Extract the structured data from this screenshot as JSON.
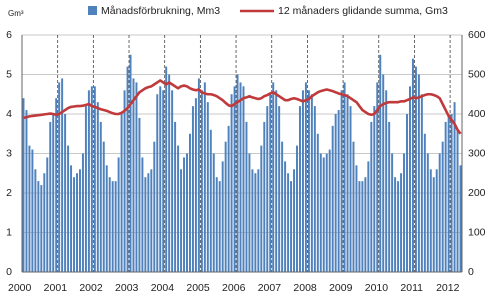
{
  "chart_data": {
    "type": "bar-line",
    "y_label": "Gm³",
    "ylim": [
      0,
      6
    ],
    "yticks": [
      0,
      1,
      2,
      3,
      4,
      5,
      6
    ],
    "y2lim": [
      0,
      600
    ],
    "y2ticks": [
      0,
      100,
      200,
      300,
      400,
      500,
      600
    ],
    "grid": true,
    "legend": "top",
    "categories": [
      "2000",
      null,
      null,
      null,
      null,
      null,
      null,
      null,
      null,
      null,
      null,
      null,
      "2001",
      null,
      null,
      null,
      null,
      null,
      null,
      null,
      null,
      null,
      null,
      null,
      "2002",
      null,
      null,
      null,
      null,
      null,
      null,
      null,
      null,
      null,
      null,
      null,
      "2003",
      null,
      null,
      null,
      null,
      null,
      null,
      null,
      null,
      null,
      null,
      null,
      "2004",
      null,
      null,
      null,
      null,
      null,
      null,
      null,
      null,
      null,
      null,
      null,
      "2005",
      null,
      null,
      null,
      null,
      null,
      null,
      null,
      null,
      null,
      null,
      null,
      "2006",
      null,
      null,
      null,
      null,
      null,
      null,
      null,
      null,
      null,
      null,
      null,
      "2007",
      null,
      null,
      null,
      null,
      null,
      null,
      null,
      null,
      null,
      null,
      null,
      "2008",
      null,
      null,
      null,
      null,
      null,
      null,
      null,
      null,
      null,
      null,
      null,
      "2009",
      null,
      null,
      null,
      null,
      null,
      null,
      null,
      null,
      null,
      null,
      null,
      "2010",
      null,
      null,
      null,
      null,
      null,
      null,
      null,
      null,
      null,
      null,
      null,
      "2011",
      null,
      null,
      null,
      null,
      null,
      null,
      null,
      null,
      null,
      null,
      null,
      "2012",
      null,
      null,
      null
    ],
    "series": [
      {
        "name": "Månadsförbrukning, Mm3",
        "type": "bar",
        "axis": "y2",
        "color": "#4f81bd",
        "values": [
          440,
          410,
          320,
          310,
          260,
          230,
          220,
          250,
          290,
          380,
          400,
          440,
          480,
          490,
          400,
          320,
          270,
          240,
          250,
          260,
          300,
          420,
          460,
          470,
          470,
          430,
          380,
          330,
          270,
          240,
          230,
          230,
          290,
          400,
          460,
          520,
          550,
          490,
          480,
          390,
          290,
          240,
          250,
          260,
          330,
          450,
          470,
          460,
          520,
          500,
          460,
          380,
          320,
          260,
          290,
          300,
          350,
          420,
          440,
          490,
          460,
          480,
          430,
          360,
          300,
          240,
          230,
          280,
          330,
          370,
          450,
          470,
          500,
          480,
          470,
          380,
          300,
          260,
          250,
          260,
          320,
          380,
          420,
          450,
          480,
          460,
          420,
          330,
          280,
          250,
          230,
          260,
          320,
          420,
          460,
          480,
          460,
          450,
          420,
          350,
          300,
          290,
          300,
          310,
          370,
          400,
          410,
          460,
          480,
          450,
          420,
          330,
          270,
          230,
          230,
          240,
          280,
          380,
          420,
          480,
          550,
          500,
          460,
          380,
          300,
          240,
          230,
          250,
          300,
          400,
          470,
          540,
          520,
          500,
          450,
          350,
          300,
          260,
          240,
          260,
          300,
          330,
          380,
          400,
          400,
          430,
          360,
          270
        ]
      },
      {
        "name": "12 månaders glidande summa, Gm3",
        "type": "line",
        "color": "#c0393b",
        "values": [
          3.9,
          3.92,
          3.94,
          3.95,
          3.96,
          3.97,
          3.98,
          3.99,
          4.0,
          4.01,
          4.0,
          3.98,
          4.0,
          4.05,
          4.1,
          4.15,
          4.18,
          4.19,
          4.2,
          4.2,
          4.21,
          4.23,
          4.25,
          4.2,
          4.18,
          4.15,
          4.12,
          4.1,
          4.08,
          4.05,
          4.02,
          4.0,
          4.0,
          4.03,
          4.08,
          4.15,
          4.25,
          4.35,
          4.45,
          4.55,
          4.6,
          4.65,
          4.68,
          4.7,
          4.75,
          4.8,
          4.85,
          4.8,
          4.75,
          4.8,
          4.75,
          4.7,
          4.65,
          4.7,
          4.72,
          4.7,
          4.65,
          4.62,
          4.6,
          4.62,
          4.55,
          4.52,
          4.5,
          4.5,
          4.48,
          4.45,
          4.4,
          4.35,
          4.28,
          4.22,
          4.2,
          4.25,
          4.3,
          4.35,
          4.4,
          4.42,
          4.45,
          4.42,
          4.4,
          4.38,
          4.4,
          4.45,
          4.48,
          4.52,
          4.55,
          4.5,
          4.45,
          4.4,
          4.35,
          4.35,
          4.38,
          4.4,
          4.38,
          4.35,
          4.32,
          4.35,
          4.38,
          4.45,
          4.5,
          4.55,
          4.58,
          4.6,
          4.62,
          4.6,
          4.58,
          4.55,
          4.52,
          4.5,
          4.48,
          4.45,
          4.4,
          4.35,
          4.3,
          4.2,
          4.1,
          4.05,
          4.0,
          3.98,
          4.0,
          4.1,
          4.2,
          4.25,
          4.28,
          4.3,
          4.3,
          4.3,
          4.3,
          4.32,
          4.32,
          4.35,
          4.38,
          4.42,
          4.4,
          4.42,
          4.45,
          4.48,
          4.5,
          4.5,
          4.48,
          4.45,
          4.4,
          4.25,
          4.1,
          3.95,
          3.85,
          3.75,
          3.6,
          3.5
        ]
      }
    ]
  }
}
